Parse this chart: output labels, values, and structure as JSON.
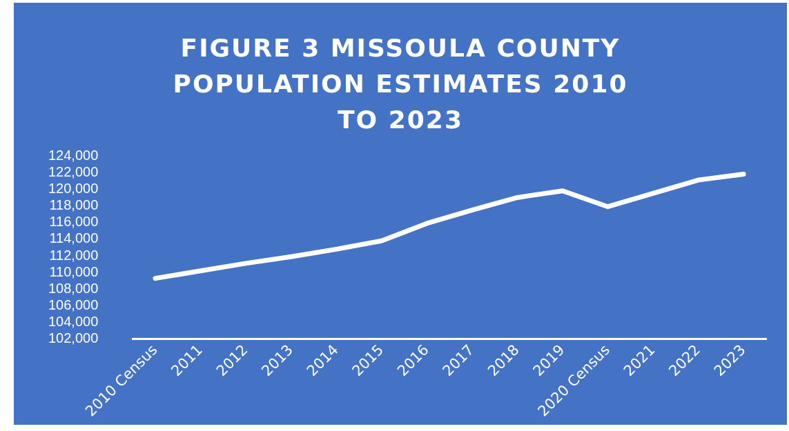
{
  "chart_data": {
    "type": "line",
    "title": "FIGURE 3 MISSOULA COUNTY POPULATION ESTIMATES 2010 TO 2023",
    "categories": [
      "2010 Census",
      "2011",
      "2012",
      "2013",
      "2014",
      "2015",
      "2016",
      "2017",
      "2018",
      "2019",
      "2020 Census",
      "2021",
      "2022",
      "2023"
    ],
    "series": [
      {
        "color": "#ffffff",
        "values": [
          109300,
          110200,
          111100,
          111900,
          112800,
          113800,
          115900,
          117500,
          119000,
          119800,
          117900,
          119500,
          121100,
          121800
        ]
      }
    ],
    "ylim": [
      102000,
      124000
    ],
    "yticks": [
      {
        "value": 102000,
        "label": "102,000"
      },
      {
        "value": 104000,
        "label": "104,000"
      },
      {
        "value": 106000,
        "label": "106,000"
      },
      {
        "value": 108000,
        "label": "108,000"
      },
      {
        "value": 110000,
        "label": "110,000"
      },
      {
        "value": 112000,
        "label": "112,000"
      },
      {
        "value": 114000,
        "label": "114,000"
      },
      {
        "value": 116000,
        "label": "116,000"
      },
      {
        "value": 118000,
        "label": "118,000"
      },
      {
        "value": 120000,
        "label": "120,000"
      },
      {
        "value": 122000,
        "label": "122,000"
      },
      {
        "value": 124000,
        "label": "124,000"
      }
    ],
    "grid": false,
    "legend": false,
    "marker": "none",
    "line_style": "solid"
  }
}
